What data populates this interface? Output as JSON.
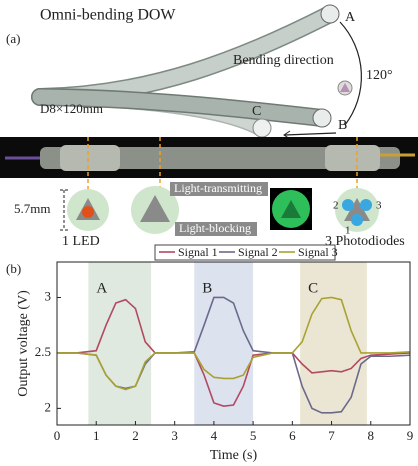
{
  "figure_a": {
    "panel_label": "(a)",
    "title": "Omni-bending DOW",
    "label_a": "A",
    "label_b": "B",
    "label_c": "C",
    "bending_direction": "Bending direction",
    "angle": "120°",
    "size": "D8×120mm",
    "diameter": "5.7mm",
    "led": "1 LED",
    "light_transmitting": "Light-transmitting",
    "light_blocking": "Light-blocking",
    "pd_1": "1",
    "pd_2": "2",
    "pd_3": "3",
    "photodiodes": "3 Photodiodes"
  },
  "chart_data": {
    "type": "line",
    "panel_label": "(b)",
    "xlabel": "Time (s)",
    "ylabel": "Output voltage (V)",
    "x": [
      0,
      0.5,
      1,
      1.25,
      1.5,
      1.75,
      2,
      2.25,
      2.5,
      3,
      3.5,
      3.75,
      4,
      4.25,
      4.5,
      4.75,
      5,
      5.5,
      6,
      6.25,
      6.5,
      6.75,
      7,
      7.25,
      7.5,
      7.75,
      8,
      8.5,
      9
    ],
    "series": [
      {
        "name": "Signal 1",
        "color": "#b24a62",
        "values": [
          2.5,
          2.5,
          2.52,
          2.75,
          2.95,
          2.98,
          2.9,
          2.6,
          2.5,
          2.5,
          2.5,
          2.3,
          2.05,
          2.02,
          2.03,
          2.2,
          2.48,
          2.5,
          2.5,
          2.4,
          2.32,
          2.33,
          2.34,
          2.33,
          2.36,
          2.45,
          2.48,
          2.49,
          2.5
        ]
      },
      {
        "name": "Signal 2",
        "color": "#6c6a8c",
        "values": [
          2.5,
          2.5,
          2.48,
          2.3,
          2.2,
          2.18,
          2.2,
          2.4,
          2.5,
          2.5,
          2.51,
          2.75,
          3.0,
          3.0,
          2.95,
          2.7,
          2.52,
          2.5,
          2.5,
          2.2,
          2.0,
          1.96,
          1.96,
          1.97,
          2.1,
          2.4,
          2.47,
          2.47,
          2.48
        ]
      },
      {
        "name": "Signal 3",
        "color": "#a9a232",
        "values": [
          2.5,
          2.5,
          2.48,
          2.3,
          2.2,
          2.17,
          2.2,
          2.42,
          2.5,
          2.5,
          2.5,
          2.35,
          2.28,
          2.27,
          2.27,
          2.3,
          2.46,
          2.5,
          2.5,
          2.6,
          2.85,
          2.99,
          3.0,
          2.98,
          2.7,
          2.5,
          2.5,
          2.5,
          2.51
        ]
      }
    ],
    "regions": [
      {
        "label": "A",
        "x": [
          0.8,
          2.4
        ],
        "color": "#dfe9df"
      },
      {
        "label": "B",
        "x": [
          3.5,
          5.0
        ],
        "color": "#dce3ee"
      },
      {
        "label": "C",
        "x": [
          6.2,
          7.9
        ],
        "color": "#ebe6d3"
      }
    ],
    "xlim": [
      0,
      9
    ],
    "ylim": [
      1.85,
      3.32
    ],
    "xticks": [
      0,
      1,
      2,
      3,
      4,
      5,
      6,
      7,
      8,
      9
    ],
    "yticks": [
      2,
      2.5,
      3
    ]
  }
}
